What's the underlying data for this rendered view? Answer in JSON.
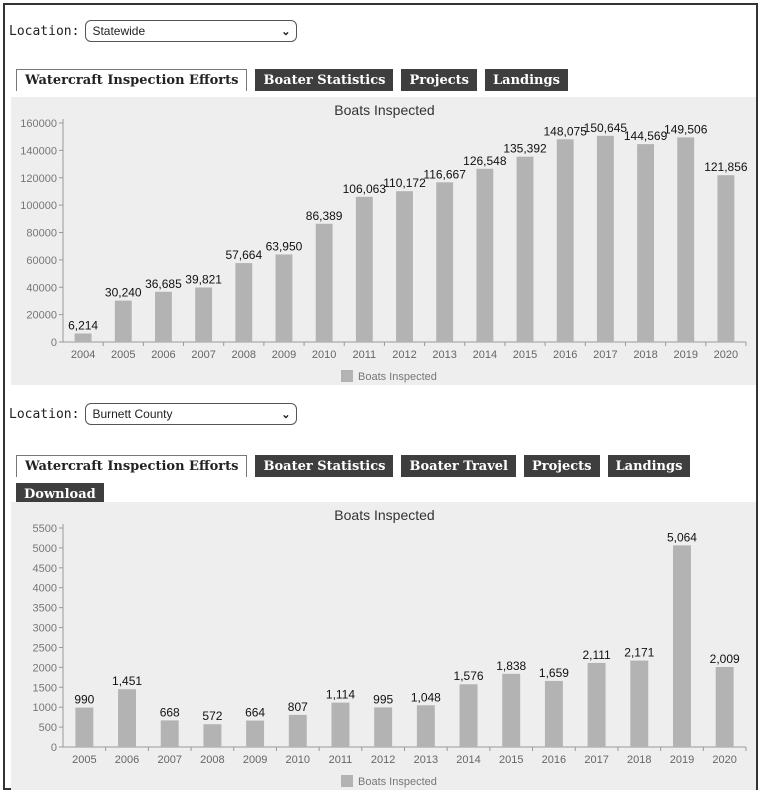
{
  "colors": {
    "bar": "#b3b3b3",
    "tab_bg": "#3e3e3e",
    "panel_bg": "#eeeeee"
  },
  "section1": {
    "location_label": "Location:",
    "location_value": "Statewide",
    "tabs": [
      {
        "label": "Watercraft Inspection Efforts",
        "active": true
      },
      {
        "label": "Boater Statistics",
        "active": false
      },
      {
        "label": "Projects",
        "active": false
      },
      {
        "label": "Landings",
        "active": false
      }
    ]
  },
  "section2": {
    "location_label": "Location:",
    "location_value": "Burnett County",
    "tabs": [
      {
        "label": "Watercraft Inspection Efforts",
        "active": true
      },
      {
        "label": "Boater Statistics",
        "active": false
      },
      {
        "label": "Boater Travel",
        "active": false
      },
      {
        "label": "Projects",
        "active": false
      },
      {
        "label": "Landings",
        "active": false
      },
      {
        "label": "Download",
        "active": false
      }
    ]
  },
  "chart_data": [
    {
      "type": "bar",
      "title": "Boats Inspected",
      "xlabel": "",
      "ylabel": "",
      "categories": [
        "2004",
        "2005",
        "2006",
        "2007",
        "2008",
        "2009",
        "2010",
        "2011",
        "2012",
        "2013",
        "2014",
        "2015",
        "2016",
        "2017",
        "2018",
        "2019",
        "2020"
      ],
      "series": [
        {
          "name": "Boats Inspected",
          "values": [
            6214,
            30240,
            36685,
            39821,
            57664,
            63950,
            86389,
            106063,
            110172,
            116667,
            126548,
            135392,
            148075,
            150645,
            144569,
            149506,
            121856
          ],
          "labels": [
            "6,214",
            "30,240",
            "36,685",
            "39,821",
            "57,664",
            "63,950",
            "86,389",
            "106,063",
            "110,172",
            "116,667",
            "126,548",
            "135,392",
            "148,075",
            "150,645",
            "144,569",
            "149,506",
            "121,856"
          ]
        }
      ],
      "yticks": [
        "0",
        "20000",
        "40000",
        "60000",
        "80000",
        "100000",
        "120000",
        "140000",
        "160000"
      ],
      "ylim": [
        0,
        160000
      ],
      "legend": "bottom",
      "grid": false
    },
    {
      "type": "bar",
      "title": "Boats Inspected",
      "xlabel": "",
      "ylabel": "",
      "categories": [
        "2005",
        "2006",
        "2007",
        "2008",
        "2009",
        "2010",
        "2011",
        "2012",
        "2013",
        "2014",
        "2015",
        "2016",
        "2017",
        "2018",
        "2019",
        "2020"
      ],
      "series": [
        {
          "name": "Boats Inspected",
          "values": [
            990,
            1451,
            668,
            572,
            664,
            807,
            1114,
            995,
            1048,
            1576,
            1838,
            1659,
            2111,
            2171,
            5064,
            2009
          ],
          "labels": [
            "990",
            "1,451",
            "668",
            "572",
            "664",
            "807",
            "1,114",
            "995",
            "1,048",
            "1,576",
            "1,838",
            "1,659",
            "2,111",
            "2,171",
            "5,064",
            "2,009"
          ]
        }
      ],
      "yticks": [
        "0",
        "500",
        "1000",
        "1500",
        "2000",
        "2500",
        "3000",
        "3500",
        "4000",
        "4500",
        "5000",
        "5500"
      ],
      "ylim": [
        0,
        5500
      ],
      "legend": "bottom",
      "grid": false
    }
  ]
}
